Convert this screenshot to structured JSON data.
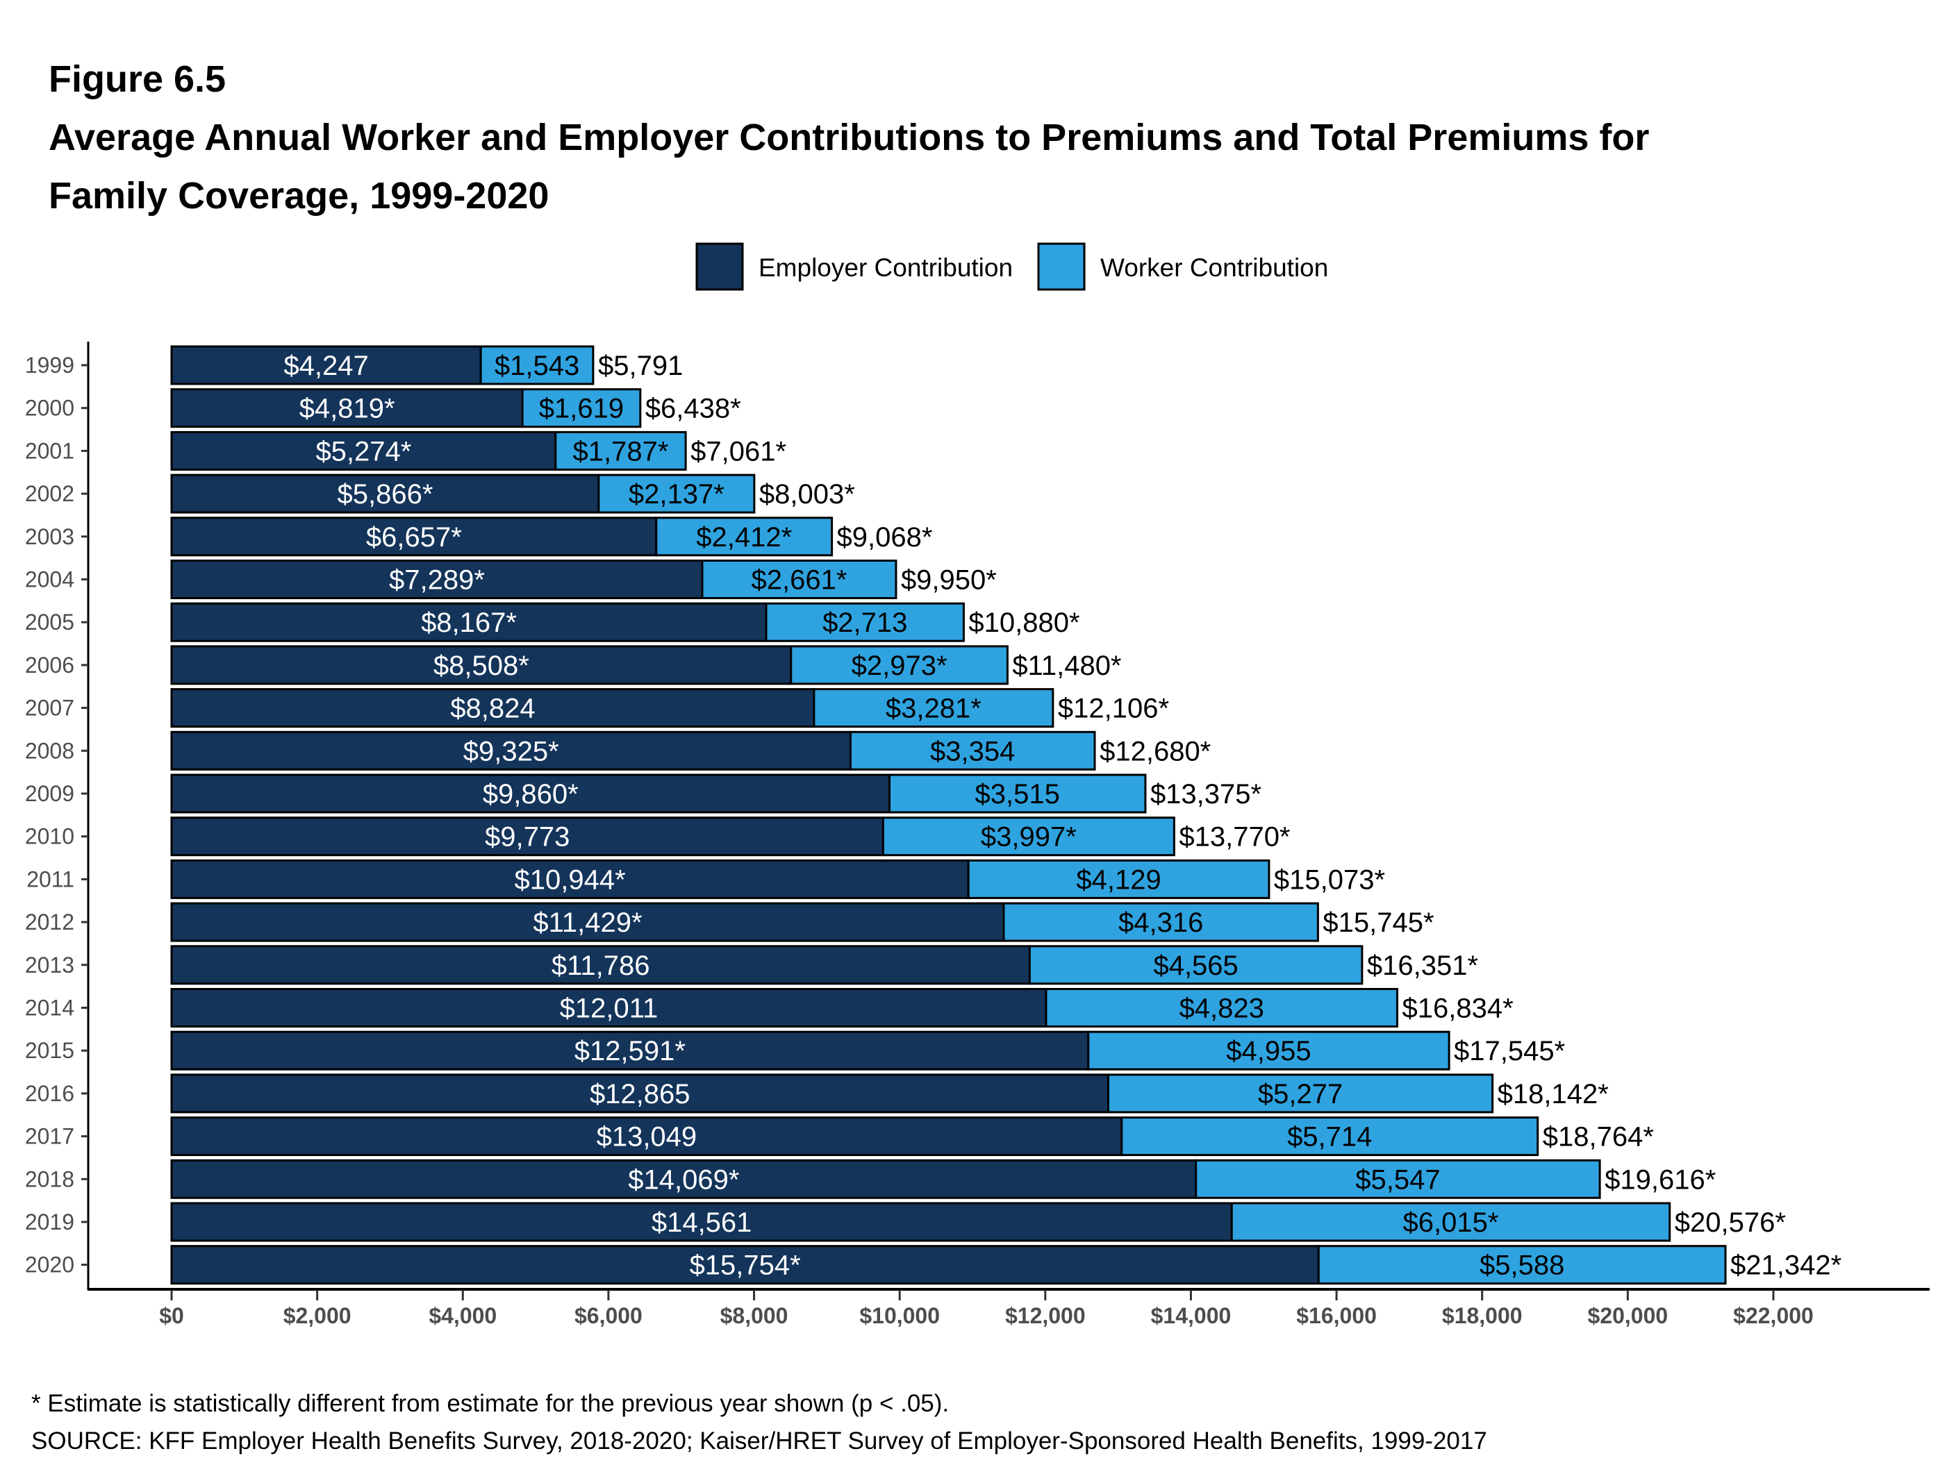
{
  "chart_data": {
    "type": "bar",
    "orientation": "horizontal",
    "stacked": true,
    "figure_label": "Figure 6.5",
    "title_lines": [
      "Average Annual Worker and Employer Contributions to Premiums and Total Premiums for",
      "Family Coverage, 1999-2020"
    ],
    "categories": [
      "1999",
      "2000",
      "2001",
      "2002",
      "2003",
      "2004",
      "2005",
      "2006",
      "2007",
      "2008",
      "2009",
      "2010",
      "2011",
      "2012",
      "2013",
      "2014",
      "2015",
      "2016",
      "2017",
      "2018",
      "2019",
      "2020"
    ],
    "series": [
      {
        "name": "Employer Contribution",
        "color": "#14345a",
        "values": [
          4247,
          4819,
          5274,
          5866,
          6657,
          7289,
          8167,
          8508,
          8824,
          9325,
          9860,
          9773,
          10944,
          11429,
          11786,
          12011,
          12591,
          12865,
          13049,
          14069,
          14561,
          15754
        ],
        "labels": [
          "$4,247",
          "$4,819*",
          "$5,274*",
          "$5,866*",
          "$6,657*",
          "$7,289*",
          "$8,167*",
          "$8,508*",
          "$8,824",
          "$9,325*",
          "$9,860*",
          "$9,773",
          "$10,944*",
          "$11,429*",
          "$11,786",
          "$12,011",
          "$12,591*",
          "$12,865",
          "$13,049",
          "$14,069*",
          "$14,561",
          "$15,754*"
        ]
      },
      {
        "name": "Worker Contribution",
        "color": "#2fa3e0",
        "values": [
          1543,
          1619,
          1787,
          2137,
          2412,
          2661,
          2713,
          2973,
          3281,
          3354,
          3515,
          3997,
          4129,
          4316,
          4565,
          4823,
          4955,
          5277,
          5714,
          5547,
          6015,
          5588
        ],
        "labels": [
          "$1,543",
          "$1,619",
          "$1,787*",
          "$2,137*",
          "$2,412*",
          "$2,661*",
          "$2,713",
          "$2,973*",
          "$3,281*",
          "$3,354",
          "$3,515",
          "$3,997*",
          "$4,129",
          "$4,316",
          "$4,565",
          "$4,823",
          "$4,955",
          "$5,277",
          "$5,714",
          "$5,547",
          "$6,015*",
          "$5,588"
        ]
      }
    ],
    "totals": [
      5791,
      6438,
      7061,
      8003,
      9068,
      9950,
      10880,
      11480,
      12106,
      12680,
      13375,
      13770,
      15073,
      15745,
      16351,
      16834,
      17545,
      18142,
      18764,
      19616,
      20576,
      21342
    ],
    "total_labels": [
      "$5,791",
      "$6,438*",
      "$7,061*",
      "$8,003*",
      "$9,068*",
      "$9,950*",
      "$10,880*",
      "$11,480*",
      "$12,106*",
      "$12,680*",
      "$13,375*",
      "$13,770*",
      "$15,073*",
      "$15,745*",
      "$16,351*",
      "$16,834*",
      "$17,545*",
      "$18,142*",
      "$18,764*",
      "$19,616*",
      "$20,576*",
      "$21,342*"
    ],
    "xlim": [
      0,
      22000
    ],
    "xticks": [
      0,
      2000,
      4000,
      6000,
      8000,
      10000,
      12000,
      14000,
      16000,
      18000,
      20000,
      22000
    ],
    "xtick_labels": [
      "$0",
      "$2,000",
      "$4,000",
      "$6,000",
      "$8,000",
      "$10,000",
      "$12,000",
      "$14,000",
      "$16,000",
      "$18,000",
      "$20,000",
      "$22,000"
    ],
    "grid": false,
    "legend_position": "top",
    "notes": [
      "* Estimate is statistically different from estimate for the previous year shown (p < .05).",
      "SOURCE: KFF Employer Health Benefits Survey, 2018-2020; Kaiser/HRET Survey of Employer-Sponsored Health Benefits, 1999-2017"
    ]
  }
}
